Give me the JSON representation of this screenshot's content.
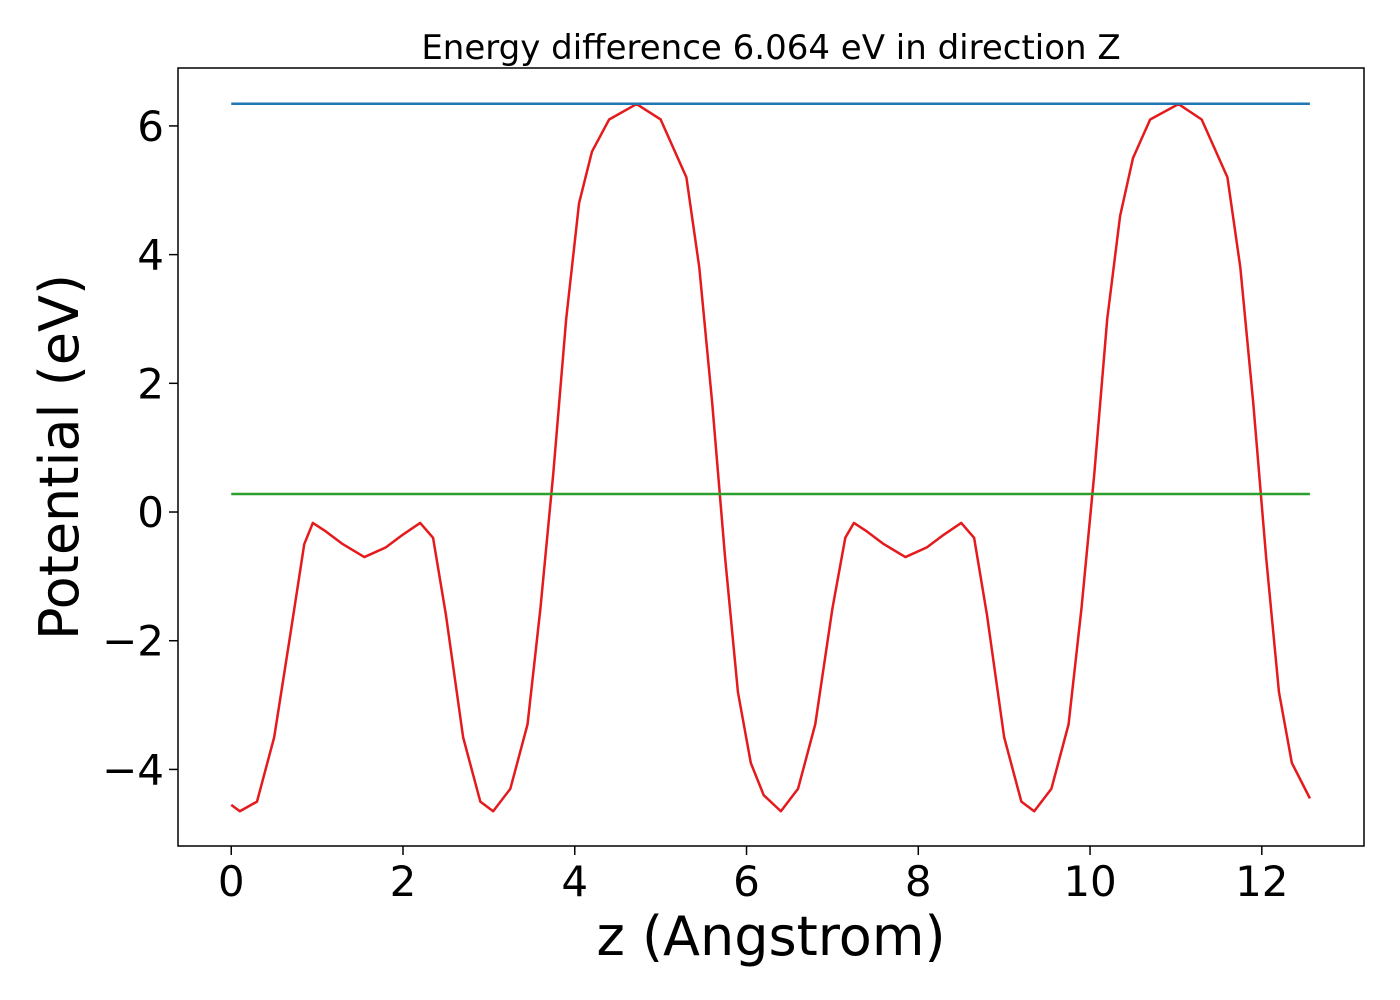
{
  "chart_data": {
    "type": "line",
    "title": "Energy difference 6.064 eV in direction Z",
    "xlabel": "z (Angstrom)",
    "ylabel": "Potential (eV)",
    "xlim": [
      -0.62,
      13.19
    ],
    "ylim": [
      -5.19,
      6.9
    ],
    "xticks": [
      0,
      2,
      4,
      6,
      8,
      10,
      12
    ],
    "yticks": [
      {
        "value": -4,
        "label": "−4"
      },
      {
        "value": -2,
        "label": "−2"
      },
      0,
      2,
      4,
      6
    ],
    "grid": false,
    "series": [
      {
        "color": "#e41a1c",
        "x": [
          0,
          0.1,
          0.3,
          0.5,
          0.7,
          0.85,
          0.95,
          1.1,
          1.3,
          1.55,
          1.8,
          2.0,
          2.2,
          2.35,
          2.5,
          2.7,
          2.9,
          3.05,
          3.25,
          3.45,
          3.6,
          3.75,
          3.9,
          4.05,
          4.2,
          4.4,
          4.72,
          5.0,
          5.3,
          5.45,
          5.6,
          5.75,
          5.9,
          6.05,
          6.2,
          6.4,
          6.6,
          6.8,
          7.0,
          7.15,
          7.25,
          7.4,
          7.6,
          7.85,
          8.1,
          8.3,
          8.5,
          8.65,
          8.8,
          9.0,
          9.2,
          9.35,
          9.55,
          9.75,
          9.9,
          10.05,
          10.2,
          10.35,
          10.5,
          10.7,
          11.03,
          11.3,
          11.6,
          11.75,
          11.9,
          12.05,
          12.2,
          12.35,
          12.56
        ],
        "values": [
          -4.55,
          -4.65,
          -4.5,
          -3.5,
          -1.8,
          -0.5,
          -0.17,
          -0.3,
          -0.5,
          -0.7,
          -0.55,
          -0.35,
          -0.17,
          -0.4,
          -1.6,
          -3.5,
          -4.5,
          -4.65,
          -4.3,
          -3.3,
          -1.5,
          0.6,
          3.0,
          4.8,
          5.6,
          6.1,
          6.34,
          6.1,
          5.2,
          3.8,
          1.7,
          -0.7,
          -2.8,
          -3.9,
          -4.4,
          -4.65,
          -4.3,
          -3.3,
          -1.5,
          -0.4,
          -0.17,
          -0.3,
          -0.5,
          -0.7,
          -0.55,
          -0.35,
          -0.17,
          -0.4,
          -1.6,
          -3.5,
          -4.5,
          -4.65,
          -4.3,
          -3.3,
          -1.5,
          0.6,
          3.0,
          4.6,
          5.5,
          6.1,
          6.34,
          6.1,
          5.2,
          3.8,
          1.7,
          -0.7,
          -2.8,
          -3.9,
          -4.45
        ]
      },
      {
        "color": "#1f77b4",
        "x": [
          0,
          12.56
        ],
        "values": [
          6.344,
          6.344
        ]
      },
      {
        "color": "#2ca02c",
        "x": [
          0,
          12.56
        ],
        "values": [
          0.28,
          0.28
        ]
      }
    ]
  }
}
